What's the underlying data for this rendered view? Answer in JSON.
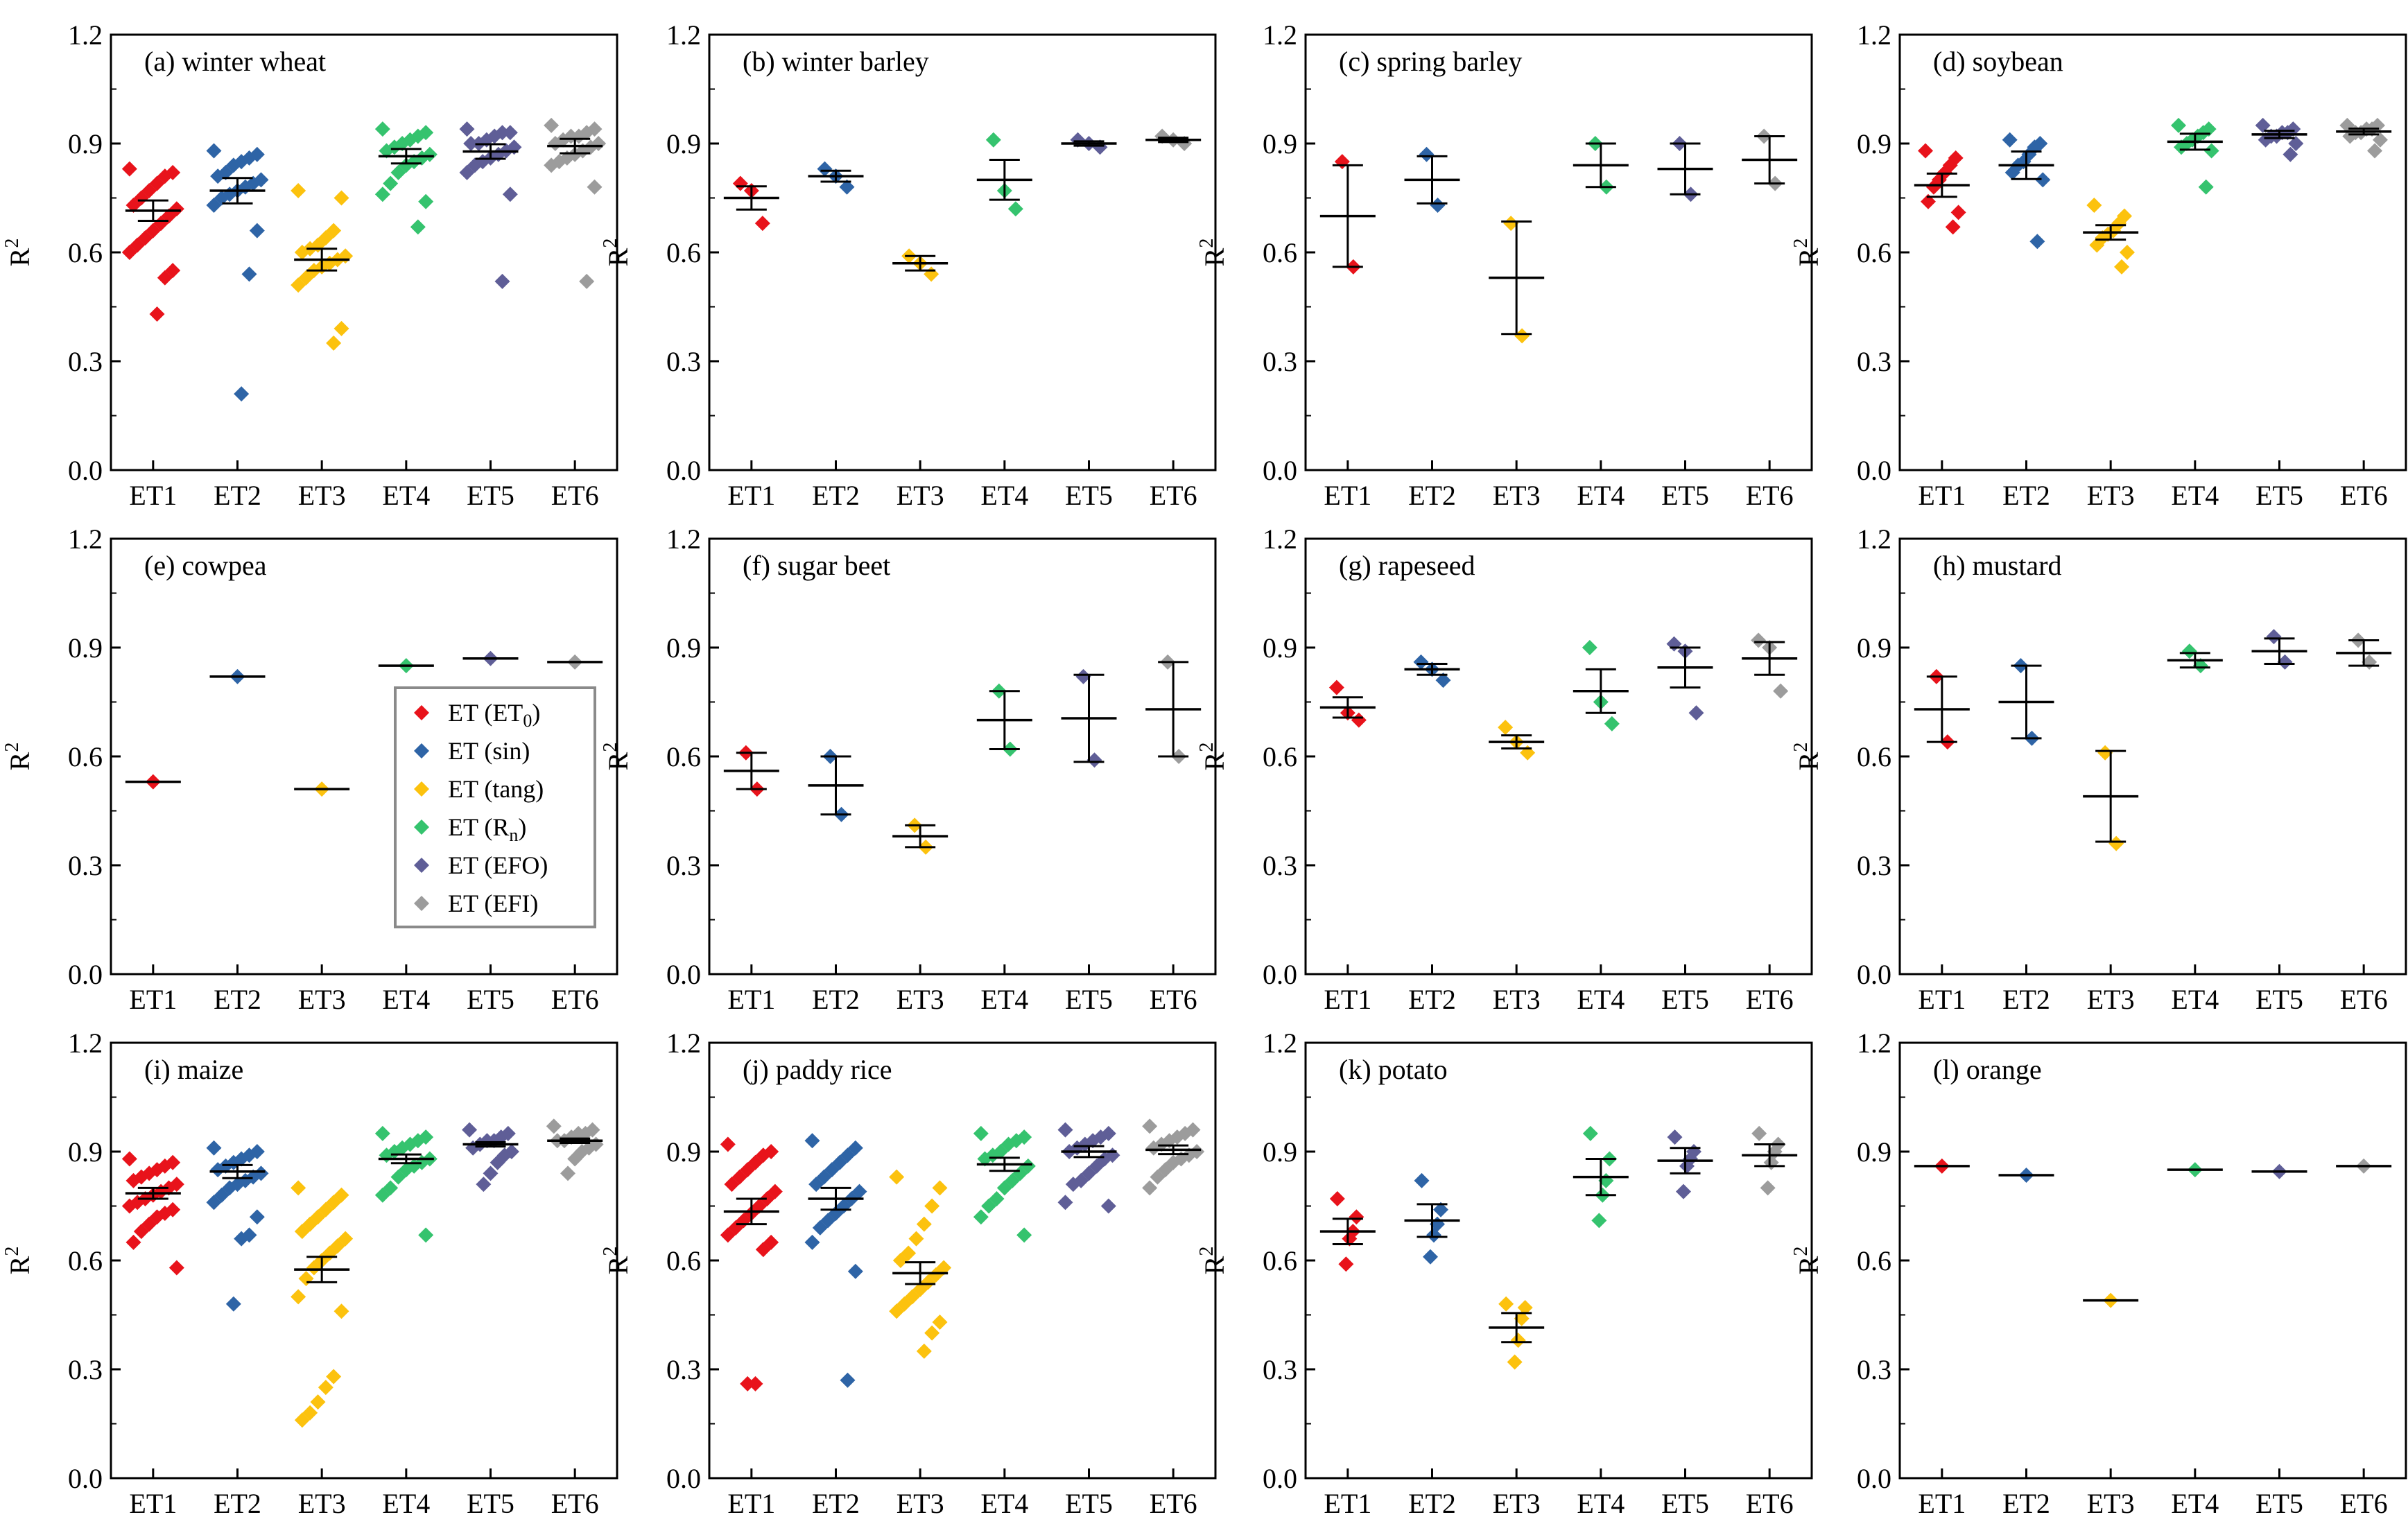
{
  "colors": {
    "ET1": "#e8131b",
    "ET2": "#2e64a6",
    "ET3": "#fcc20e",
    "ET4": "#35c36e",
    "ET5": "#5f5e97",
    "ET6": "#9c9c9c"
  },
  "legend": {
    "entries": [
      {
        "key": "ET1",
        "label": "ET (ET",
        "sub": "0",
        "tail": ")"
      },
      {
        "key": "ET2",
        "label": "ET (sin)",
        "sub": "",
        "tail": ""
      },
      {
        "key": "ET3",
        "label": "ET (tang)",
        "sub": "",
        "tail": ""
      },
      {
        "key": "ET4",
        "label": "ET (R",
        "sub": "n",
        "tail": ")"
      },
      {
        "key": "ET5",
        "label": "ET (EFO)",
        "sub": "",
        "tail": ""
      },
      {
        "key": "ET6",
        "label": "ET (EFI)",
        "sub": "",
        "tail": ""
      }
    ]
  },
  "chart_data": [
    {
      "type": "scatter",
      "title": "(a) winter wheat",
      "categories": [
        "ET1",
        "ET2",
        "ET3",
        "ET4",
        "ET5",
        "ET6"
      ],
      "ylabel": "R",
      "ylabel_sup": "2",
      "ylim": [
        0,
        1.2
      ],
      "yticks": [
        "0.0",
        "0.3",
        "0.6",
        "0.9",
        "1.2"
      ],
      "means": [
        0.715,
        0.77,
        0.58,
        0.865,
        0.878,
        0.893
      ],
      "errors": [
        0.028,
        0.035,
        0.03,
        0.02,
        0.02,
        0.02
      ],
      "points": [
        [
          0.83,
          0.82,
          0.81,
          0.79,
          0.77,
          0.75,
          0.73,
          0.72,
          0.7,
          0.68,
          0.66,
          0.64,
          0.62,
          0.6,
          0.55,
          0.53,
          0.43
        ],
        [
          0.88,
          0.87,
          0.86,
          0.85,
          0.84,
          0.82,
          0.81,
          0.8,
          0.79,
          0.78,
          0.77,
          0.76,
          0.75,
          0.73,
          0.66,
          0.54,
          0.21
        ],
        [
          0.77,
          0.75,
          0.66,
          0.64,
          0.62,
          0.61,
          0.6,
          0.59,
          0.58,
          0.57,
          0.56,
          0.55,
          0.53,
          0.51,
          0.39,
          0.35
        ],
        [
          0.94,
          0.93,
          0.92,
          0.91,
          0.9,
          0.89,
          0.88,
          0.87,
          0.86,
          0.85,
          0.84,
          0.82,
          0.79,
          0.76,
          0.74,
          0.67
        ],
        [
          0.94,
          0.93,
          0.93,
          0.92,
          0.91,
          0.9,
          0.9,
          0.89,
          0.88,
          0.87,
          0.86,
          0.85,
          0.84,
          0.82,
          0.76,
          0.52
        ],
        [
          0.95,
          0.94,
          0.93,
          0.92,
          0.92,
          0.91,
          0.9,
          0.9,
          0.89,
          0.88,
          0.87,
          0.86,
          0.85,
          0.84,
          0.78,
          0.52
        ]
      ]
    },
    {
      "type": "scatter",
      "title": "(b) winter barley",
      "categories": [
        "ET1",
        "ET2",
        "ET3",
        "ET4",
        "ET5",
        "ET6"
      ],
      "ylabel": "R",
      "ylabel_sup": "2",
      "ylim": [
        0,
        1.2
      ],
      "yticks": [
        "0.0",
        "0.3",
        "0.6",
        "0.9",
        "1.2"
      ],
      "means": [
        0.75,
        0.81,
        0.57,
        0.8,
        0.9,
        0.91
      ],
      "errors": [
        0.032,
        0.015,
        0.02,
        0.055,
        0.006,
        0.006
      ],
      "points": [
        [
          0.79,
          0.77,
          0.68
        ],
        [
          0.83,
          0.81,
          0.78
        ],
        [
          0.59,
          0.57,
          0.54
        ],
        [
          0.91,
          0.77,
          0.72
        ],
        [
          0.91,
          0.9,
          0.89
        ],
        [
          0.92,
          0.91,
          0.9
        ]
      ]
    },
    {
      "type": "scatter",
      "title": "(c) spring barley",
      "categories": [
        "ET1",
        "ET2",
        "ET3",
        "ET4",
        "ET5",
        "ET6"
      ],
      "ylabel": "R",
      "ylabel_sup": "2",
      "ylim": [
        0,
        1.2
      ],
      "yticks": [
        "0.0",
        "0.3",
        "0.6",
        "0.9",
        "1.2"
      ],
      "means": [
        0.7,
        0.8,
        0.53,
        0.84,
        0.83,
        0.855
      ],
      "errors": [
        0.14,
        0.065,
        0.155,
        0.06,
        0.07,
        0.065
      ],
      "points": [
        [
          0.85,
          0.56
        ],
        [
          0.87,
          0.73
        ],
        [
          0.68,
          0.37
        ],
        [
          0.9,
          0.78
        ],
        [
          0.9,
          0.76
        ],
        [
          0.92,
          0.79
        ]
      ]
    },
    {
      "type": "scatter",
      "title": "(d) soybean",
      "categories": [
        "ET1",
        "ET2",
        "ET3",
        "ET4",
        "ET5",
        "ET6"
      ],
      "ylabel": "R",
      "ylabel_sup": "2",
      "ylim": [
        0,
        1.2
      ],
      "yticks": [
        "0.0",
        "0.3",
        "0.6",
        "0.9",
        "1.2"
      ],
      "means": [
        0.785,
        0.84,
        0.655,
        0.905,
        0.925,
        0.933
      ],
      "errors": [
        0.032,
        0.038,
        0.02,
        0.022,
        0.01,
        0.008
      ],
      "points": [
        [
          0.88,
          0.86,
          0.84,
          0.82,
          0.8,
          0.78,
          0.74,
          0.71,
          0.67
        ],
        [
          0.91,
          0.9,
          0.89,
          0.87,
          0.85,
          0.84,
          0.82,
          0.8,
          0.63
        ],
        [
          0.73,
          0.7,
          0.68,
          0.66,
          0.65,
          0.64,
          0.62,
          0.6,
          0.56
        ],
        [
          0.95,
          0.94,
          0.93,
          0.92,
          0.91,
          0.9,
          0.89,
          0.88,
          0.78
        ],
        [
          0.95,
          0.94,
          0.93,
          0.93,
          0.92,
          0.92,
          0.91,
          0.9,
          0.87
        ],
        [
          0.95,
          0.95,
          0.94,
          0.94,
          0.93,
          0.93,
          0.92,
          0.91,
          0.88
        ]
      ]
    },
    {
      "type": "scatter",
      "title": "(e) cowpea",
      "categories": [
        "ET1",
        "ET2",
        "ET3",
        "ET4",
        "ET5",
        "ET6"
      ],
      "ylabel": "R",
      "ylabel_sup": "2",
      "ylim": [
        0,
        1.2
      ],
      "yticks": [
        "0.0",
        "0.3",
        "0.6",
        "0.9",
        "1.2"
      ],
      "means": [
        0.53,
        0.82,
        0.51,
        0.85,
        0.87,
        0.86
      ],
      "errors": [
        0,
        0,
        0,
        0,
        0,
        0
      ],
      "points": [
        [
          0.53
        ],
        [
          0.82
        ],
        [
          0.51
        ],
        [
          0.85
        ],
        [
          0.87
        ],
        [
          0.86
        ]
      ]
    },
    {
      "type": "scatter",
      "title": "(f) sugar beet",
      "categories": [
        "ET1",
        "ET2",
        "ET3",
        "ET4",
        "ET5",
        "ET6"
      ],
      "ylabel": "R",
      "ylabel_sup": "2",
      "ylim": [
        0,
        1.2
      ],
      "yticks": [
        "0.0",
        "0.3",
        "0.6",
        "0.9",
        "1.2"
      ],
      "means": [
        0.56,
        0.52,
        0.38,
        0.7,
        0.705,
        0.73
      ],
      "errors": [
        0.05,
        0.08,
        0.03,
        0.08,
        0.12,
        0.13
      ],
      "points": [
        [
          0.61,
          0.51
        ],
        [
          0.6,
          0.44
        ],
        [
          0.41,
          0.35
        ],
        [
          0.78,
          0.62
        ],
        [
          0.82,
          0.59
        ],
        [
          0.86,
          0.6
        ]
      ]
    },
    {
      "type": "scatter",
      "title": "(g) rapeseed",
      "categories": [
        "ET1",
        "ET2",
        "ET3",
        "ET4",
        "ET5",
        "ET6"
      ],
      "ylabel": "R",
      "ylabel_sup": "2",
      "ylim": [
        0,
        1.2
      ],
      "yticks": [
        "0.0",
        "0.3",
        "0.6",
        "0.9",
        "1.2"
      ],
      "means": [
        0.735,
        0.84,
        0.64,
        0.78,
        0.845,
        0.87
      ],
      "errors": [
        0.028,
        0.015,
        0.018,
        0.06,
        0.055,
        0.045
      ],
      "points": [
        [
          0.79,
          0.72,
          0.7
        ],
        [
          0.86,
          0.84,
          0.81
        ],
        [
          0.68,
          0.64,
          0.61
        ],
        [
          0.9,
          0.75,
          0.69
        ],
        [
          0.91,
          0.89,
          0.72
        ],
        [
          0.92,
          0.9,
          0.78
        ]
      ]
    },
    {
      "type": "scatter",
      "title": "(h) mustard",
      "categories": [
        "ET1",
        "ET2",
        "ET3",
        "ET4",
        "ET5",
        "ET6"
      ],
      "ylabel": "R",
      "ylabel_sup": "2",
      "ylim": [
        0,
        1.2
      ],
      "yticks": [
        "0.0",
        "0.3",
        "0.6",
        "0.9",
        "1.2"
      ],
      "means": [
        0.73,
        0.75,
        0.49,
        0.865,
        0.89,
        0.885
      ],
      "errors": [
        0.09,
        0.1,
        0.125,
        0.02,
        0.035,
        0.035
      ],
      "points": [
        [
          0.82,
          0.64
        ],
        [
          0.85,
          0.65
        ],
        [
          0.61,
          0.36
        ],
        [
          0.89,
          0.85
        ],
        [
          0.93,
          0.86
        ],
        [
          0.92,
          0.86
        ]
      ]
    },
    {
      "type": "scatter",
      "title": "(i) maize",
      "categories": [
        "ET1",
        "ET2",
        "ET3",
        "ET4",
        "ET5",
        "ET6"
      ],
      "ylabel": "R",
      "ylabel_sup": "2",
      "ylim": [
        0,
        1.2
      ],
      "yticks": [
        "0.0",
        "0.3",
        "0.6",
        "0.9",
        "1.2"
      ],
      "means": [
        0.785,
        0.845,
        0.575,
        0.88,
        0.92,
        0.93
      ],
      "errors": [
        0.015,
        0.018,
        0.035,
        0.012,
        0.006,
        0.006
      ],
      "points": [
        [
          0.88,
          0.87,
          0.86,
          0.85,
          0.84,
          0.83,
          0.82,
          0.81,
          0.8,
          0.79,
          0.78,
          0.77,
          0.76,
          0.75,
          0.74,
          0.73,
          0.72,
          0.7,
          0.68,
          0.65,
          0.58
        ],
        [
          0.91,
          0.9,
          0.89,
          0.88,
          0.87,
          0.86,
          0.85,
          0.84,
          0.83,
          0.82,
          0.81,
          0.8,
          0.78,
          0.76,
          0.72,
          0.67,
          0.66,
          0.48
        ],
        [
          0.8,
          0.78,
          0.76,
          0.74,
          0.72,
          0.7,
          0.68,
          0.66,
          0.64,
          0.62,
          0.6,
          0.58,
          0.55,
          0.5,
          0.46,
          0.28,
          0.25,
          0.21,
          0.18,
          0.16
        ],
        [
          0.95,
          0.94,
          0.93,
          0.92,
          0.91,
          0.9,
          0.89,
          0.88,
          0.87,
          0.86,
          0.85,
          0.83,
          0.8,
          0.78,
          0.67
        ],
        [
          0.96,
          0.95,
          0.94,
          0.93,
          0.93,
          0.92,
          0.91,
          0.9,
          0.89,
          0.87,
          0.84,
          0.81
        ],
        [
          0.97,
          0.96,
          0.95,
          0.95,
          0.94,
          0.93,
          0.93,
          0.92,
          0.91,
          0.9,
          0.88,
          0.84
        ]
      ]
    },
    {
      "type": "scatter",
      "title": "(j) paddy rice",
      "categories": [
        "ET1",
        "ET2",
        "ET3",
        "ET4",
        "ET5",
        "ET6"
      ],
      "ylabel": "R",
      "ylabel_sup": "2",
      "ylim": [
        0,
        1.2
      ],
      "yticks": [
        "0.0",
        "0.3",
        "0.6",
        "0.9",
        "1.2"
      ],
      "means": [
        0.735,
        0.77,
        0.565,
        0.865,
        0.9,
        0.905
      ],
      "errors": [
        0.035,
        0.03,
        0.03,
        0.018,
        0.015,
        0.012
      ],
      "points": [
        [
          0.92,
          0.9,
          0.89,
          0.87,
          0.85,
          0.83,
          0.81,
          0.79,
          0.77,
          0.75,
          0.73,
          0.71,
          0.69,
          0.67,
          0.65,
          0.63,
          0.26,
          0.26
        ],
        [
          0.93,
          0.91,
          0.89,
          0.87,
          0.85,
          0.83,
          0.81,
          0.79,
          0.77,
          0.75,
          0.73,
          0.71,
          0.69,
          0.65,
          0.57,
          0.27
        ],
        [
          0.83,
          0.8,
          0.75,
          0.7,
          0.66,
          0.62,
          0.6,
          0.58,
          0.56,
          0.54,
          0.52,
          0.5,
          0.48,
          0.46,
          0.43,
          0.4,
          0.35
        ],
        [
          0.95,
          0.94,
          0.93,
          0.92,
          0.9,
          0.89,
          0.88,
          0.86,
          0.84,
          0.82,
          0.8,
          0.77,
          0.75,
          0.72,
          0.67
        ],
        [
          0.96,
          0.95,
          0.94,
          0.93,
          0.92,
          0.91,
          0.9,
          0.89,
          0.88,
          0.86,
          0.84,
          0.82,
          0.81,
          0.76,
          0.75
        ],
        [
          0.97,
          0.96,
          0.95,
          0.94,
          0.93,
          0.92,
          0.91,
          0.9,
          0.89,
          0.88,
          0.87,
          0.85,
          0.83,
          0.8
        ]
      ]
    },
    {
      "type": "scatter",
      "title": "(k) potato",
      "categories": [
        "ET1",
        "ET2",
        "ET3",
        "ET4",
        "ET5",
        "ET6"
      ],
      "ylabel": "R",
      "ylabel_sup": "2",
      "ylim": [
        0,
        1.2
      ],
      "yticks": [
        "0.0",
        "0.3",
        "0.6",
        "0.9",
        "1.2"
      ],
      "means": [
        0.68,
        0.71,
        0.415,
        0.83,
        0.875,
        0.89
      ],
      "errors": [
        0.035,
        0.045,
        0.04,
        0.05,
        0.035,
        0.03
      ],
      "points": [
        [
          0.77,
          0.72,
          0.68,
          0.66,
          0.59
        ],
        [
          0.82,
          0.74,
          0.7,
          0.67,
          0.61
        ],
        [
          0.48,
          0.47,
          0.44,
          0.38,
          0.32
        ],
        [
          0.95,
          0.88,
          0.82,
          0.78,
          0.71
        ],
        [
          0.94,
          0.9,
          0.88,
          0.86,
          0.79
        ],
        [
          0.95,
          0.92,
          0.9,
          0.87,
          0.8
        ]
      ]
    },
    {
      "type": "scatter",
      "title": "(l) orange",
      "categories": [
        "ET1",
        "ET2",
        "ET3",
        "ET4",
        "ET5",
        "ET6"
      ],
      "ylabel": "R",
      "ylabel_sup": "2",
      "ylim": [
        0,
        1.2
      ],
      "yticks": [
        "0.0",
        "0.3",
        "0.6",
        "0.9",
        "1.2"
      ],
      "means": [
        0.86,
        0.835,
        0.49,
        0.85,
        0.845,
        0.86
      ],
      "errors": [
        0,
        0,
        0,
        0,
        0,
        0
      ],
      "points": [
        [
          0.86
        ],
        [
          0.835
        ],
        [
          0.49
        ],
        [
          0.85
        ],
        [
          0.845
        ],
        [
          0.86
        ]
      ]
    }
  ]
}
